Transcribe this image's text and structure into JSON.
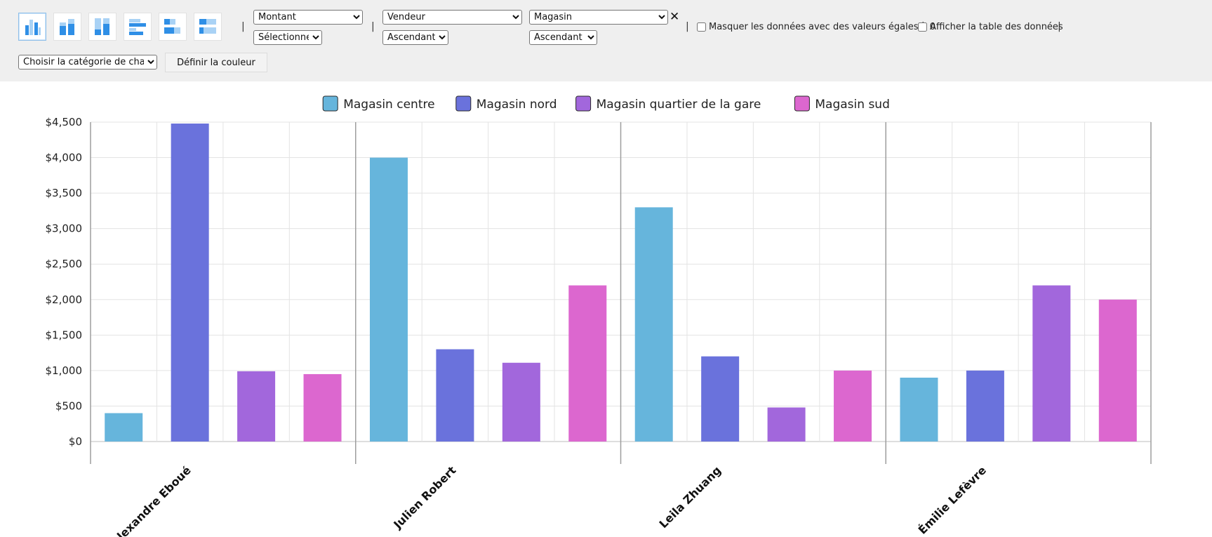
{
  "toolbar": {
    "chart_types": [
      {
        "name": "chart-type-column-clustered-icon",
        "active": true
      },
      {
        "name": "chart-type-column-stacked-icon",
        "active": false
      },
      {
        "name": "chart-type-column-percent-icon",
        "active": false
      },
      {
        "name": "chart-type-bar-clustered-icon",
        "active": false
      },
      {
        "name": "chart-type-bar-stacked-icon",
        "active": false
      },
      {
        "name": "chart-type-bar-percent-icon",
        "active": false
      }
    ],
    "value_field": "Montant",
    "aggregate": "Sélectionner",
    "category_field": "Vendeur",
    "category_sort": "Ascendant",
    "series_field": "Magasin",
    "series_sort": "Ascendant",
    "hide_zero_label": "Masquer les données avec des valeurs égales à 0",
    "show_table_label": "Afficher la table des données",
    "field_category": "Choisir la catégorie de champ",
    "set_color_label": "Définir la couleur",
    "separator": "|",
    "close_glyph": "✕"
  },
  "chart_data": {
    "type": "bar",
    "categories": [
      "Alexandre Eboué",
      "Julien Robert",
      "Leila Zhuang",
      "Émilie Lefèvre"
    ],
    "series": [
      {
        "name": "Magasin centre",
        "color": "#66b5dc",
        "values": [
          400,
          4000,
          3300,
          900
        ]
      },
      {
        "name": "Magasin nord",
        "color": "#6a72dc",
        "values": [
          4480,
          1300,
          1200,
          1000
        ]
      },
      {
        "name": "Magasin quartier de la gare",
        "color": "#a267dc",
        "values": [
          990,
          1110,
          480,
          2200
        ]
      },
      {
        "name": "Magasin sud",
        "color": "#dc67cf",
        "values": [
          950,
          2200,
          1000,
          2000
        ]
      }
    ],
    "y_ticks": [
      "$0",
      "$500",
      "$1,000",
      "$1,500",
      "$2,000",
      "$2,500",
      "$3,000",
      "$3,500",
      "$4,000",
      "$4,500"
    ],
    "ylim": [
      0,
      4500
    ],
    "grid": true,
    "legend_position": "top"
  }
}
